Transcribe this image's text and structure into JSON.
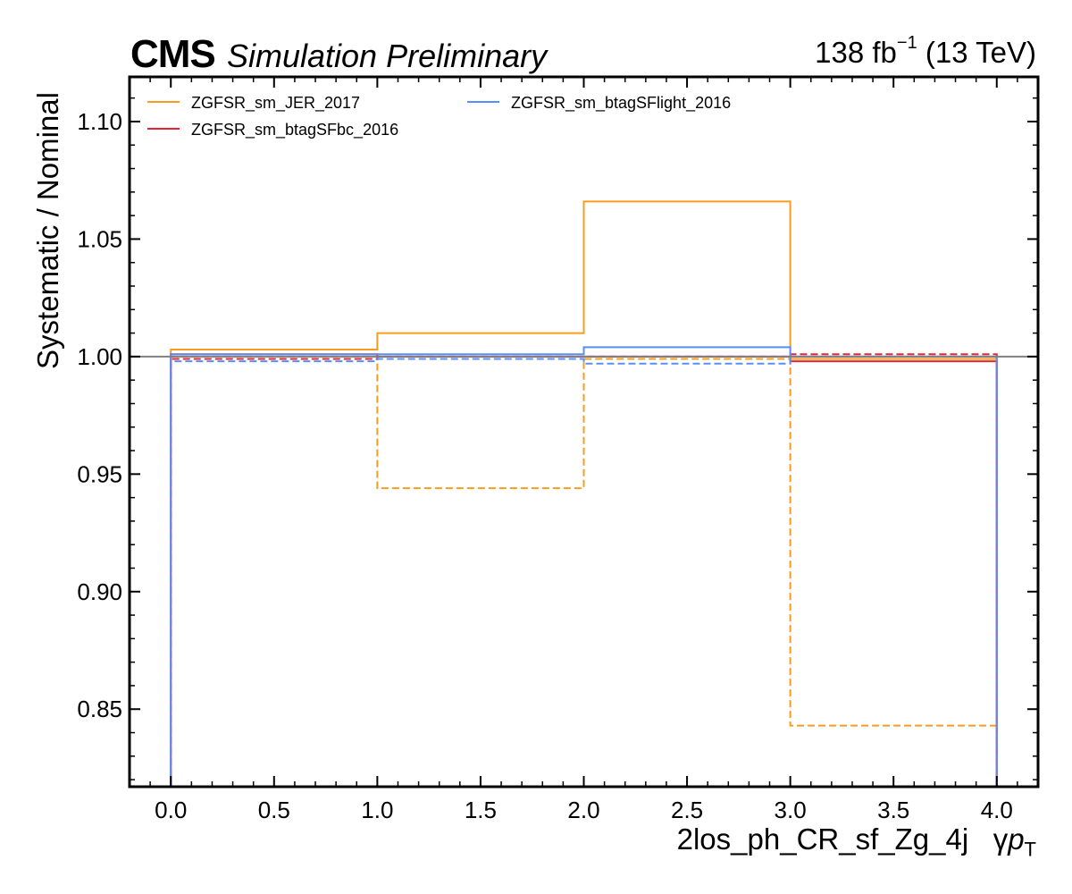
{
  "header": {
    "experiment": "CMS",
    "status": "Simulation Preliminary",
    "lumi_value": "138 fb",
    "lumi_exp": "−1",
    "lumi_energy": " (13 TeV)"
  },
  "axes": {
    "xlabel_main": "2los_ph_CR_sf_Zg_4j",
    "xlabel_gamma": "γ",
    "xlabel_p": "p",
    "xlabel_sub": "T",
    "ylabel": "Systematic / Nominal"
  },
  "chart_data": {
    "type": "line",
    "drawstyle": "steps",
    "bin_edges": [
      0,
      1,
      2,
      3,
      4
    ],
    "xlim": [
      -0.2,
      4.2
    ],
    "ylim": [
      0.817,
      1.119
    ],
    "x_ticks": [
      0.0,
      0.5,
      1.0,
      1.5,
      2.0,
      2.5,
      3.0,
      3.5,
      4.0
    ],
    "x_tick_labels": [
      "0.0",
      "0.5",
      "1.0",
      "1.5",
      "2.0",
      "2.5",
      "3.0",
      "3.5",
      "4.0"
    ],
    "y_ticks": [
      0.85,
      0.9,
      0.95,
      1.0,
      1.05,
      1.1
    ],
    "y_tick_labels": [
      "0.85",
      "0.90",
      "0.95",
      "1.00",
      "1.05",
      "1.10"
    ],
    "reference_line": 1.0,
    "legend_position": "top-left",
    "legend_columns": 2,
    "series": [
      {
        "name": "ZGFSR_sm_JER_2017",
        "variation": "up",
        "color": "#f89c20",
        "values": [
          1.003,
          1.01,
          1.066,
          0.999
        ]
      },
      {
        "name": "ZGFSR_sm_JER_2017",
        "variation": "down",
        "color": "#f89c20",
        "values": [
          1.0,
          0.944,
          0.999,
          0.843
        ]
      },
      {
        "name": "ZGFSR_sm_btagSFbc_2016",
        "variation": "up",
        "color": "#e42536",
        "values": [
          1.001,
          1.0,
          1.0,
          0.998
        ]
      },
      {
        "name": "ZGFSR_sm_btagSFbc_2016",
        "variation": "down",
        "color": "#e42536",
        "values": [
          0.999,
          1.0,
          1.0,
          1.001
        ]
      },
      {
        "name": "ZGFSR_sm_btagSFlight_2016",
        "variation": "up",
        "color": "#5790fc",
        "values": [
          1.001,
          1.001,
          1.004,
          1.0
        ]
      },
      {
        "name": "ZGFSR_sm_btagSFlight_2016",
        "variation": "down",
        "color": "#5790fc",
        "values": [
          0.998,
          0.999,
          0.997,
          1.0
        ]
      }
    ],
    "legend": [
      {
        "label": "ZGFSR_sm_JER_2017",
        "color": "#f89c20"
      },
      {
        "label": "ZGFSR_sm_btagSFbc_2016",
        "color": "#e42536"
      },
      {
        "label": "ZGFSR_sm_btagSFlight_2016",
        "color": "#5790fc"
      }
    ]
  }
}
